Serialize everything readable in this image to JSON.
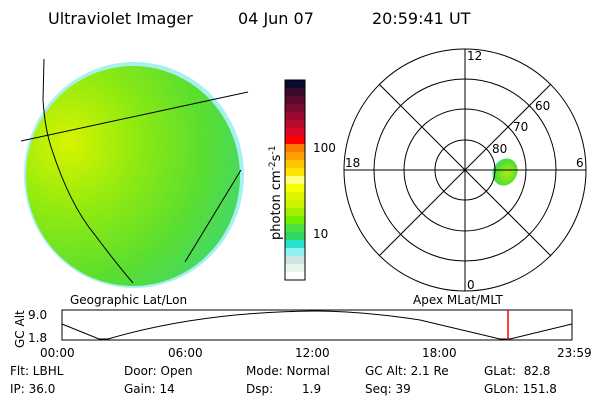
{
  "header": {
    "title": "Ultraviolet Imager",
    "date": "04 Jun 07",
    "time": "20:59:41 UT"
  },
  "colorbar": {
    "label_main": "photon cm",
    "label_exp1": "-2",
    "label_s": "s",
    "label_exp2": "-1",
    "ticks": [
      "100",
      "10"
    ],
    "colors": [
      "#0a0a30",
      "#3a0a2a",
      "#5a0a30",
      "#7a0a30",
      "#980a30",
      "#b80a2a",
      "#d80a28",
      "#ff0000",
      "#ff7800",
      "#ffa000",
      "#ffc400",
      "#ffe400",
      "#ffff80",
      "#f4ff00",
      "#e0f400",
      "#c8f400",
      "#a4f000",
      "#70f000",
      "#4ce040",
      "#30d860",
      "#28e0d0",
      "#90f0f0",
      "#d0e4e4",
      "#e8f4ee",
      "#ffffff"
    ]
  },
  "polar": {
    "mlt_labels": {
      "top": "12",
      "bottom": "0",
      "left": "18",
      "right": "6"
    },
    "lat_labels": [
      "80",
      "70",
      "60"
    ]
  },
  "timeline": {
    "left_label": "Geographic Lat/Lon",
    "right_label": "Apex MLat/MLT",
    "ylabel": "GC Alt",
    "y_ticks": [
      "9.0",
      "1.8"
    ],
    "x_ticks": [
      "00:00",
      "06:00",
      "12:00",
      "18:00",
      "23:59"
    ],
    "current_time_hours": 20.99,
    "marker_color": "#ff0000"
  },
  "status": {
    "flt": "Flt: LBHL",
    "ip": "IP: 36.0",
    "door": "Door: Open",
    "gain": "Gain: 14",
    "mode": "Mode: Normal",
    "dsp": "Dsp:",
    "dsp_value": "1.9",
    "gcalt": "GC Alt: 2.1 Re",
    "seq": "Seq: 39",
    "glat": "GLat:  82.8",
    "glon": "GLon: 151.8"
  }
}
